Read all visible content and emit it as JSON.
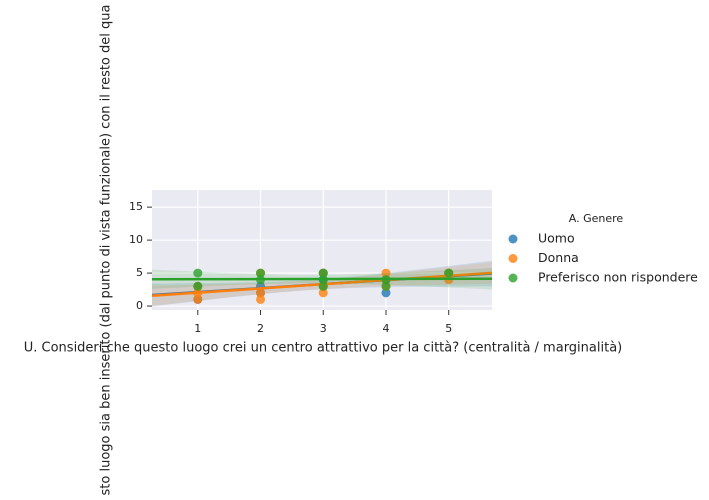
{
  "chart_data": {
    "type": "scatter",
    "xlabel": "U. Consideri che questo luogo crei un centro attrattivo per la città? (centralità / marginalità)",
    "ylabel": "sto luogo sia ben inserito (dal punto di vista funzionale) con il resto del qua",
    "legend_title": "A. Genere",
    "xlim": [
      0.27,
      5.69
    ],
    "ylim": [
      -0.6,
      17.6
    ],
    "xticks": [
      1,
      2,
      3,
      4,
      5
    ],
    "yticks": [
      0,
      5,
      10,
      15
    ],
    "grid": true,
    "series": [
      {
        "name": "Uomo",
        "color": "#1f77b4",
        "x": [
          1,
          1,
          2,
          2,
          3,
          3,
          3,
          4,
          4,
          5
        ],
        "values": [
          3,
          1,
          3,
          2,
          5,
          4,
          3,
          2,
          4,
          5
        ]
      },
      {
        "name": "Donna",
        "color": "#ff7f0e",
        "x": [
          1,
          1,
          1,
          2,
          2,
          2,
          3,
          3,
          3,
          4,
          4,
          4,
          5,
          5
        ],
        "values": [
          3,
          2,
          1,
          5,
          2,
          1,
          5,
          3,
          2,
          5,
          4,
          3,
          5,
          4
        ]
      },
      {
        "name": "Preferisco non rispondere",
        "color": "#2ca02c",
        "x": [
          1,
          1,
          2,
          2,
          3,
          3,
          3,
          4,
          4,
          5
        ],
        "values": [
          5,
          3,
          5,
          4,
          5,
          4,
          3,
          3,
          4,
          5
        ]
      }
    ]
  }
}
